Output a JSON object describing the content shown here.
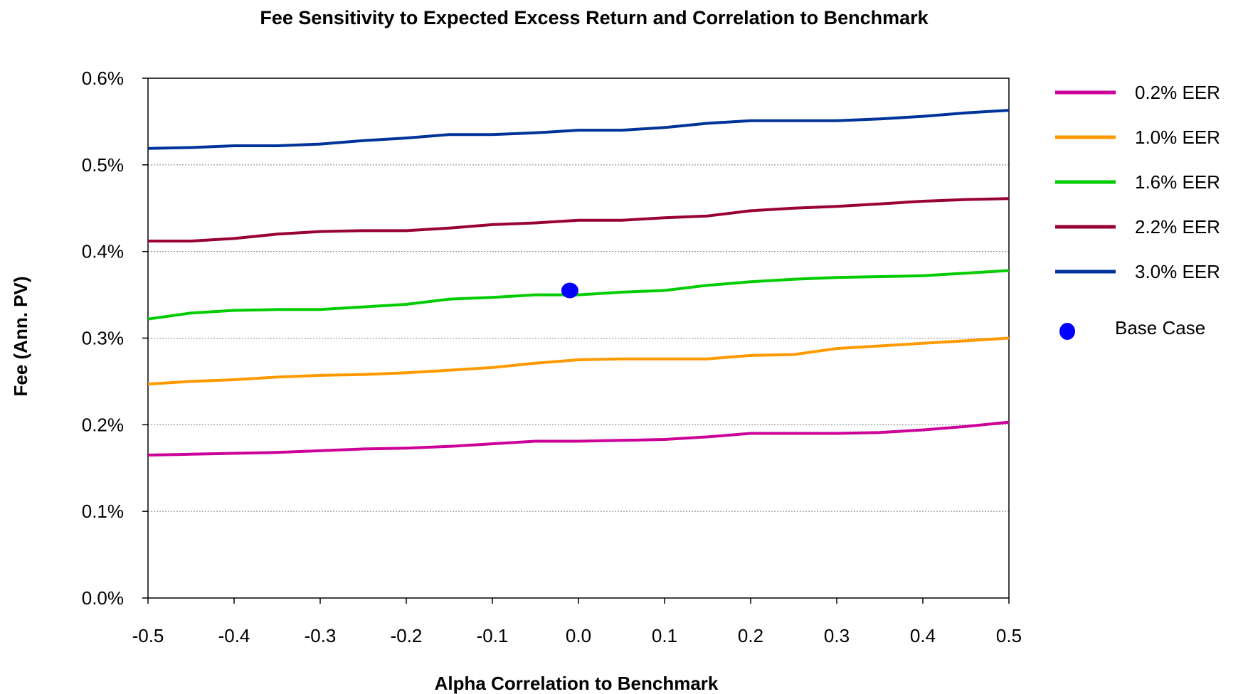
{
  "chart_data": {
    "type": "line",
    "title": "Fee Sensitivity to Expected Excess Return and Correlation to Benchmark",
    "xlabel": "Alpha Correlation to Benchmark",
    "ylabel": "Fee (Ann. PV)",
    "xlim": [
      -0.5,
      0.5
    ],
    "ylim": [
      0.0,
      0.6
    ],
    "x_ticks": [
      "-0.5",
      "-0.4",
      "-0.3",
      "-0.2",
      "-0.1",
      "0.0",
      "0.1",
      "0.2",
      "0.3",
      "0.4",
      "0.5"
    ],
    "y_ticks": [
      "0.0%",
      "0.1%",
      "0.2%",
      "0.3%",
      "0.4%",
      "0.5%",
      "0.6%"
    ],
    "grid": "horizontal dotted",
    "legend_position": "right",
    "x": [
      -0.5,
      -0.45,
      -0.4,
      -0.35,
      -0.3,
      -0.25,
      -0.2,
      -0.15,
      -0.1,
      -0.05,
      0.0,
      0.05,
      0.1,
      0.15,
      0.2,
      0.25,
      0.3,
      0.35,
      0.4,
      0.45,
      0.5
    ],
    "series": [
      {
        "name": "0.2% EER",
        "color": "#cc0099",
        "values": [
          0.165,
          0.166,
          0.167,
          0.168,
          0.17,
          0.172,
          0.173,
          0.175,
          0.178,
          0.181,
          0.181,
          0.182,
          0.183,
          0.186,
          0.19,
          0.19,
          0.19,
          0.191,
          0.194,
          0.198,
          0.203
        ]
      },
      {
        "name": "1.0% EER",
        "color": "#ff9900",
        "values": [
          0.247,
          0.25,
          0.252,
          0.255,
          0.257,
          0.258,
          0.26,
          0.263,
          0.266,
          0.271,
          0.275,
          0.276,
          0.276,
          0.276,
          0.28,
          0.281,
          0.288,
          0.291,
          0.294,
          0.297,
          0.3
        ]
      },
      {
        "name": "1.6% EER",
        "color": "#00cc00",
        "values": [
          0.322,
          0.329,
          0.332,
          0.333,
          0.333,
          0.336,
          0.339,
          0.345,
          0.347,
          0.35,
          0.35,
          0.353,
          0.355,
          0.361,
          0.365,
          0.368,
          0.37,
          0.371,
          0.372,
          0.375,
          0.378
        ]
      },
      {
        "name": "2.2% EER",
        "color": "#990033",
        "values": [
          0.412,
          0.412,
          0.415,
          0.42,
          0.423,
          0.424,
          0.424,
          0.427,
          0.431,
          0.433,
          0.436,
          0.436,
          0.439,
          0.441,
          0.447,
          0.45,
          0.452,
          0.455,
          0.458,
          0.46,
          0.461
        ]
      },
      {
        "name": "3.0% EER",
        "color": "#003399",
        "values": [
          0.519,
          0.52,
          0.522,
          0.522,
          0.524,
          0.528,
          0.531,
          0.535,
          0.535,
          0.537,
          0.54,
          0.54,
          0.543,
          0.548,
          0.551,
          0.551,
          0.551,
          0.553,
          0.556,
          0.56,
          0.563
        ]
      }
    ],
    "markers": [
      {
        "name": "Base Case",
        "x": -0.01,
        "y": 0.355,
        "color": "#0000ff"
      }
    ]
  }
}
